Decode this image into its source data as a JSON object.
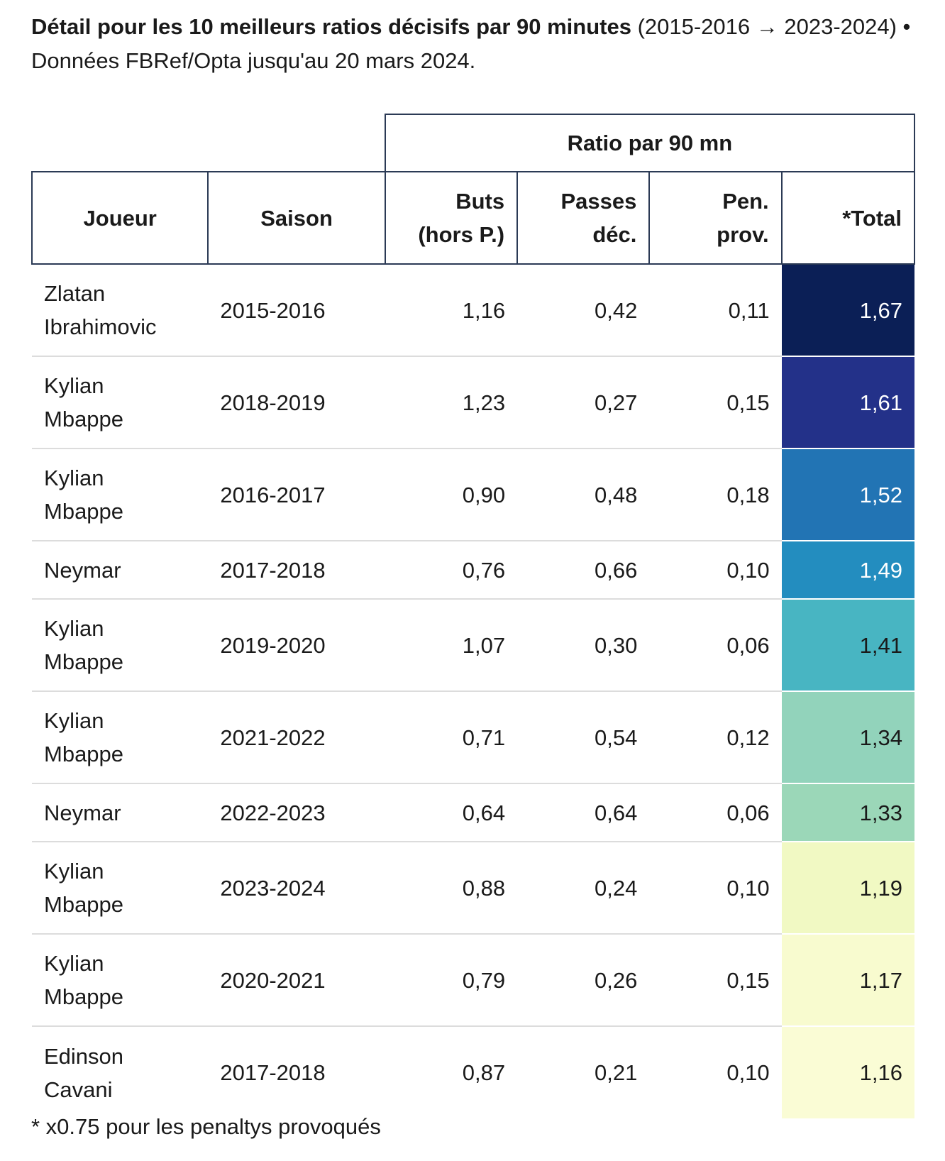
{
  "title": {
    "bold": "Détail pour les 10 meilleurs ratios décisifs par 90 minutes",
    "rest": " (2015-2016 → 2023-2024) • Données FBRef/Opta jusqu'au 20 mars 2024."
  },
  "chart_data": {
    "type": "table",
    "group_header": "Ratio par 90 mn",
    "columns": {
      "player": "Joueur",
      "season": "Saison",
      "goals_l1": "Buts",
      "goals_l2": "(hors P.)",
      "assists_l1": "Passes",
      "assists_l2": "déc.",
      "pens_l1": "Pen.",
      "pens_l2": "prov.",
      "total": "*Total"
    },
    "rows": [
      {
        "player_l1": "Zlatan",
        "player_l2": "Ibrahimovic",
        "season": "2015-2016",
        "goals": "1,16",
        "assists": "0,42",
        "pens": "0,11",
        "total": "1,67",
        "total_value": 1.67,
        "bg": "#0b1f56",
        "fg": "#ffffff"
      },
      {
        "player_l1": "Kylian",
        "player_l2": "Mbappe",
        "season": "2018-2019",
        "goals": "1,23",
        "assists": "0,27",
        "pens": "0,15",
        "total": "1,61",
        "total_value": 1.61,
        "bg": "#233189",
        "fg": "#ffffff"
      },
      {
        "player_l1": "Kylian",
        "player_l2": "Mbappe",
        "season": "2016-2017",
        "goals": "0,90",
        "assists": "0,48",
        "pens": "0,18",
        "total": "1,52",
        "total_value": 1.52,
        "bg": "#2274b4",
        "fg": "#ffffff"
      },
      {
        "player_l1": "Neymar",
        "player_l2": "",
        "season": "2017-2018",
        "goals": "0,76",
        "assists": "0,66",
        "pens": "0,10",
        "total": "1,49",
        "total_value": 1.49,
        "bg": "#238dbf",
        "fg": "#ffffff"
      },
      {
        "player_l1": "Kylian",
        "player_l2": "Mbappe",
        "season": "2019-2020",
        "goals": "1,07",
        "assists": "0,30",
        "pens": "0,06",
        "total": "1,41",
        "total_value": 1.41,
        "bg": "#48b5c2",
        "fg": "#1a1a1a"
      },
      {
        "player_l1": "Kylian",
        "player_l2": "Mbappe",
        "season": "2021-2022",
        "goals": "0,71",
        "assists": "0,54",
        "pens": "0,12",
        "total": "1,34",
        "total_value": 1.34,
        "bg": "#92d3bb",
        "fg": "#1a1a1a"
      },
      {
        "player_l1": "Neymar",
        "player_l2": "",
        "season": "2022-2023",
        "goals": "0,64",
        "assists": "0,64",
        "pens": "0,06",
        "total": "1,33",
        "total_value": 1.33,
        "bg": "#9bd7b8",
        "fg": "#1a1a1a"
      },
      {
        "player_l1": "Kylian",
        "player_l2": "Mbappe",
        "season": "2023-2024",
        "goals": "0,88",
        "assists": "0,24",
        "pens": "0,10",
        "total": "1,19",
        "total_value": 1.19,
        "bg": "#f1f9c3",
        "fg": "#1a1a1a"
      },
      {
        "player_l1": "Kylian",
        "player_l2": "Mbappe",
        "season": "2020-2021",
        "goals": "0,79",
        "assists": "0,26",
        "pens": "0,15",
        "total": "1,17",
        "total_value": 1.17,
        "bg": "#f8fbcf",
        "fg": "#1a1a1a"
      },
      {
        "player_l1": "Edinson",
        "player_l2": "Cavani",
        "season": "2017-2018",
        "goals": "0,87",
        "assists": "0,21",
        "pens": "0,10",
        "total": "1,16",
        "total_value": 1.16,
        "bg": "#fafcd5",
        "fg": "#1a1a1a"
      }
    ]
  },
  "footnote": "* x0.75 pour les penaltys provoqués"
}
